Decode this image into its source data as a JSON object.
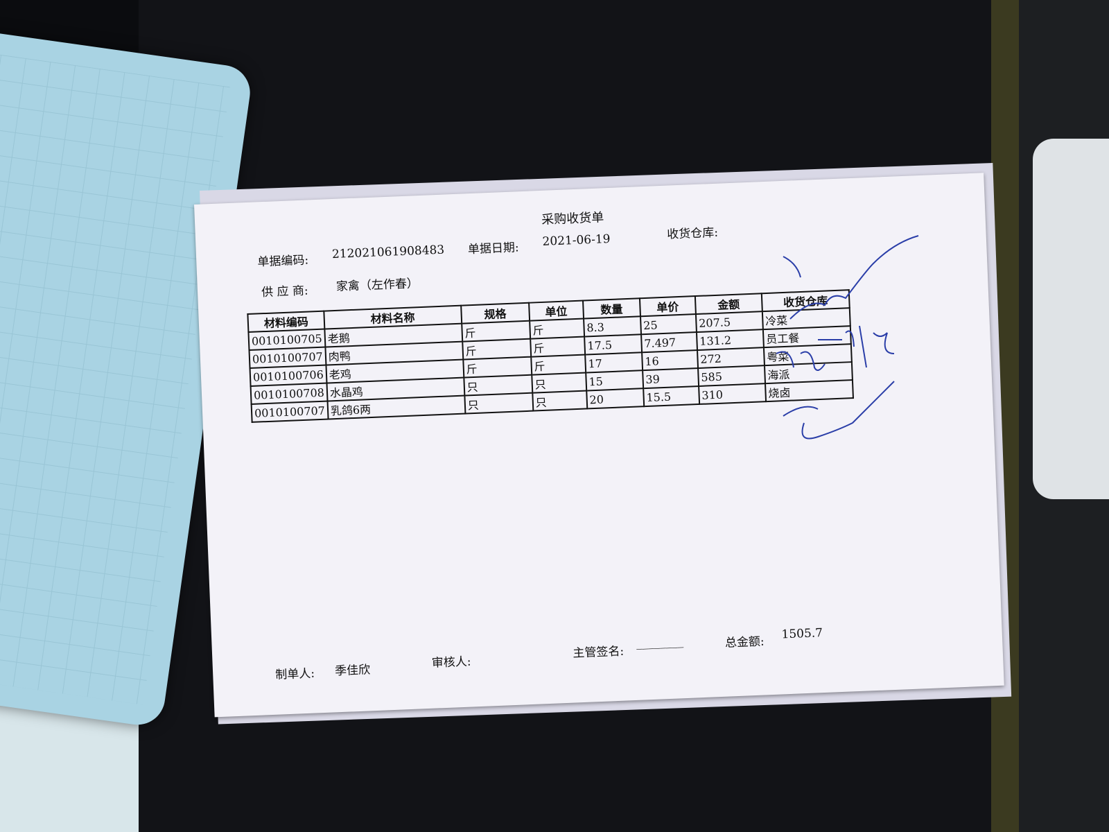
{
  "document": {
    "title": "采购收货单",
    "doc_no_label": "单据编码:",
    "doc_no": "212021061908483",
    "date_label": "单据日期:",
    "date": "2021-06-19",
    "warehouse_label": "收货仓库:",
    "supplier_label": "供 应 商:",
    "supplier": "家禽（左作春）",
    "table": {
      "headers": [
        "材料编码",
        "材料名称",
        "规格",
        "单位",
        "数量",
        "单价",
        "金额",
        "收货仓库"
      ],
      "rows": [
        {
          "code": "0010100705",
          "name": "老鹅",
          "spec": "斤",
          "unit": "斤",
          "qty": "8.3",
          "price": "25",
          "amount": "207.5",
          "warehouse": "冷菜"
        },
        {
          "code": "0010100707",
          "name": "肉鸭",
          "spec": "斤",
          "unit": "斤",
          "qty": "17.5",
          "price": "7.497",
          "amount": "131.2",
          "warehouse": "员工餐"
        },
        {
          "code": "0010100706",
          "name": "老鸡",
          "spec": "斤",
          "unit": "斤",
          "qty": "17",
          "price": "16",
          "amount": "272",
          "warehouse": "粤菜"
        },
        {
          "code": "0010100708",
          "name": "水晶鸡",
          "spec": "只",
          "unit": "只",
          "qty": "15",
          "price": "39",
          "amount": "585",
          "warehouse": "海派"
        },
        {
          "code": "0010100707",
          "name": "乳鸽6两",
          "spec": "只",
          "unit": "只",
          "qty": "20",
          "price": "15.5",
          "amount": "310",
          "warehouse": "烧卤"
        }
      ]
    },
    "footer": {
      "maker_label": "制单人:",
      "maker": "季佳欣",
      "reviewer_label": "审核人:",
      "supervisor_label": "主管签名:",
      "supervisor_blank": "________",
      "total_label": "总金额:",
      "total": "1505.7"
    },
    "signature_ink_color": "#2a3ea8"
  }
}
